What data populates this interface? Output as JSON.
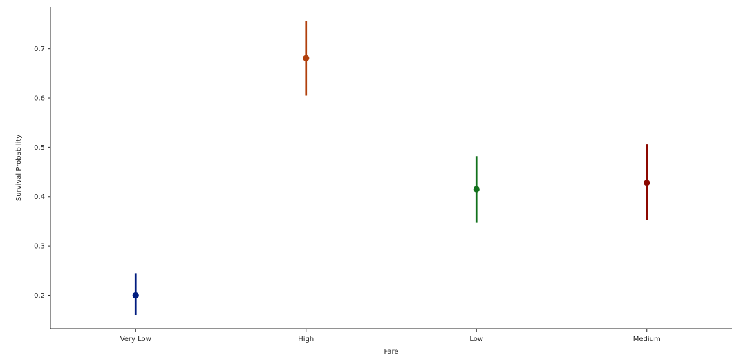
{
  "chart_data": {
    "type": "scatter",
    "xlabel": "Fare",
    "ylabel": "Survival Probability",
    "categories": [
      "Very Low",
      "High",
      "Low",
      "Medium"
    ],
    "points": [
      {
        "category": "Very Low",
        "value": 0.2,
        "ci_low": 0.16,
        "ci_high": 0.245,
        "color": "#001c7f"
      },
      {
        "category": "High",
        "value": 0.681,
        "ci_low": 0.605,
        "ci_high": 0.757,
        "color": "#b1400d"
      },
      {
        "category": "Low",
        "value": 0.415,
        "ci_low": 0.347,
        "ci_high": 0.482,
        "color": "#12711c"
      },
      {
        "category": "Medium",
        "value": 0.428,
        "ci_low": 0.353,
        "ci_high": 0.506,
        "color": "#8c0800"
      }
    ],
    "y_ticks": [
      0.2,
      0.3,
      0.4,
      0.5,
      0.6,
      0.7
    ],
    "ylim": [
      0.132,
      0.785
    ],
    "grid": false,
    "error_bars": "confidence interval"
  }
}
